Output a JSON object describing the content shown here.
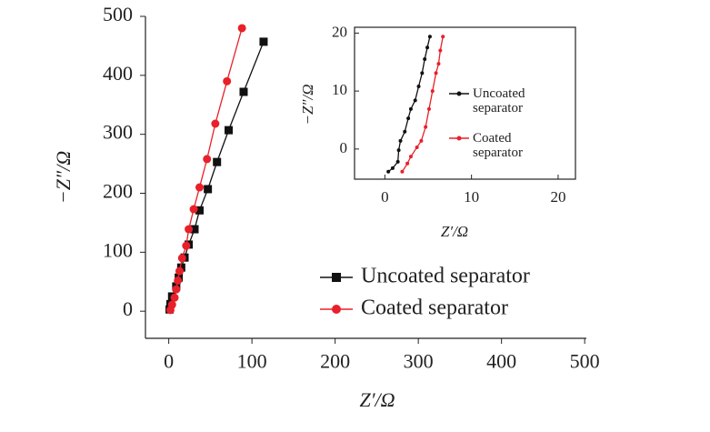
{
  "chart_data": [
    {
      "type": "line",
      "xlabel": "Z′/Ω",
      "ylabel": "−Z″/Ω",
      "xlim": [
        -28,
        502
      ],
      "ylim": [
        -46,
        500
      ],
      "xticks": [
        0,
        100,
        200,
        300,
        400,
        500
      ],
      "yticks": [
        0,
        100,
        200,
        300,
        400,
        500
      ],
      "legend": "lower right",
      "series": [
        {
          "name": "Uncoated separator",
          "color": "#111111",
          "marker": "square",
          "x": [
            1,
            2,
            4,
            9,
            12,
            15,
            19,
            24,
            31,
            37,
            47,
            58,
            72,
            90,
            114
          ],
          "values": [
            3,
            12,
            25,
            42,
            57,
            74,
            91,
            113,
            139,
            171,
            207,
            253,
            307,
            372,
            457
          ]
        },
        {
          "name": "Coated separator",
          "color": "#e8202a",
          "marker": "circle",
          "x": [
            2,
            4,
            7,
            9,
            11,
            13,
            16,
            21,
            24,
            30,
            37,
            46,
            56,
            70,
            88
          ],
          "values": [
            2,
            11,
            23,
            37,
            52,
            68,
            90,
            111,
            139,
            173,
            210,
            258,
            318,
            390,
            480
          ]
        }
      ]
    },
    {
      "type": "line",
      "xlabel": "Z′/Ω",
      "ylabel": "−Z″/Ω",
      "xlim": [
        -3.5,
        22
      ],
      "ylim": [
        -5.2,
        21
      ],
      "xticks": [
        0,
        10,
        20
      ],
      "yticks": [
        0,
        10,
        20
      ],
      "legend": "right",
      "series": [
        {
          "name": "Uncoated separator",
          "color": "#111111",
          "marker": "circle",
          "x": [
            0.4,
            0.9,
            1.5,
            1.6,
            1.8,
            2.3,
            2.7,
            3.0,
            3.5,
            3.9,
            4.3,
            4.6,
            4.9,
            5.2
          ],
          "values": [
            -3.9,
            -3.3,
            -2.2,
            -0.2,
            1.4,
            3.0,
            5.3,
            6.9,
            8.4,
            10.8,
            13.1,
            15.5,
            17.5,
            19.4
          ]
        },
        {
          "name": "Coated separator",
          "color": "#e8202a",
          "marker": "circle",
          "x": [
            2.0,
            2.6,
            3.0,
            3.7,
            4.2,
            4.7,
            5.1,
            5.5,
            5.9,
            6.2,
            6.4,
            6.7
          ],
          "values": [
            -3.9,
            -2.5,
            -1.3,
            0.3,
            1.4,
            3.8,
            6.9,
            10.0,
            13.1,
            14.7,
            17.0,
            19.4
          ]
        }
      ]
    }
  ]
}
